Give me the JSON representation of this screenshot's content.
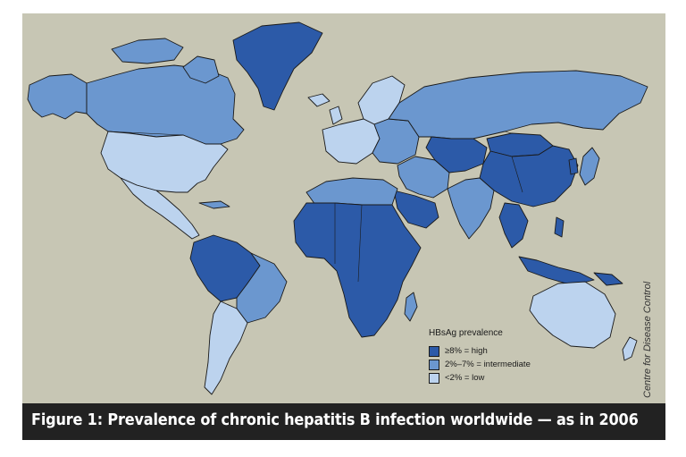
{
  "colors": {
    "ocean": "#c7c6b4",
    "high": "#2c5aa8",
    "intermediate": "#6b97cf",
    "low": "#bcd3ee",
    "caption_bg": "#222222",
    "caption_text": "#ffffff"
  },
  "legend": {
    "title": "HBsAg prevalence",
    "items": [
      {
        "label": "≥8% = high",
        "level": "high",
        "color": "#2c5aa8"
      },
      {
        "label": "2%–7% = intermediate",
        "level": "intermediate",
        "color": "#6b97cf"
      },
      {
        "label": "<2% = low",
        "level": "low",
        "color": "#bcd3ee"
      }
    ]
  },
  "credit": "Centre for Disease Control",
  "caption": "Figure 1: Prevalence of chronic hepatitis B infection worldwide — as in 2006"
}
